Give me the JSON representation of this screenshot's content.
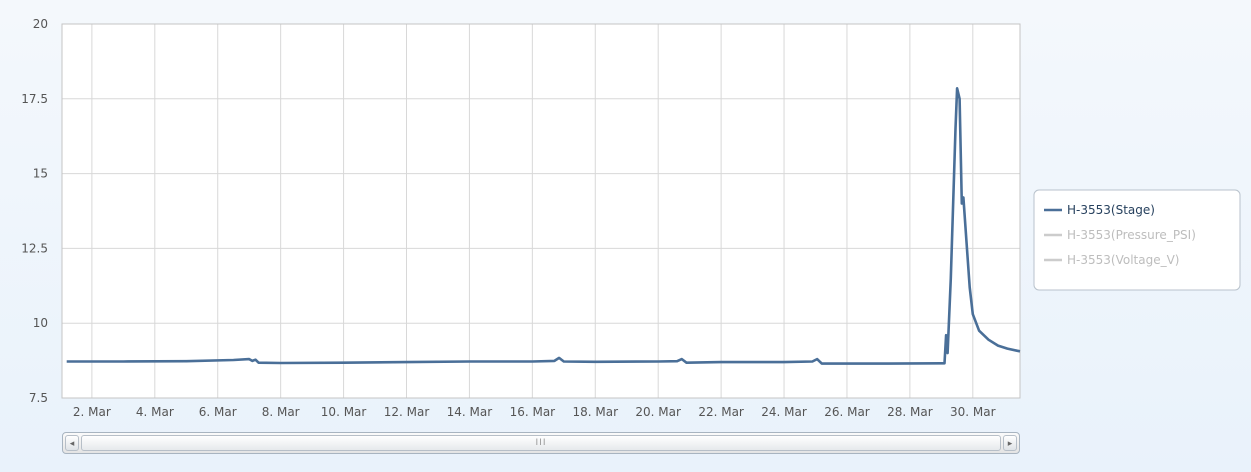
{
  "chart_data": {
    "type": "line",
    "y_ticks": [
      "20",
      "17.5",
      "15",
      "12.5",
      "10",
      "7.5"
    ],
    "y_tick_values": [
      20,
      17.5,
      15,
      12.5,
      10,
      7.5
    ],
    "ylim": [
      7.5,
      20
    ],
    "x_ticks": [
      "2. Mar",
      "4. Mar",
      "6. Mar",
      "8. Mar",
      "10. Mar",
      "12. Mar",
      "14. Mar",
      "16. Mar",
      "18. Mar",
      "20. Mar",
      "22. Mar",
      "24. Mar",
      "26. Mar",
      "28. Mar",
      "30. Mar"
    ],
    "x_tick_days": [
      2,
      4,
      6,
      8,
      10,
      12,
      14,
      16,
      18,
      20,
      22,
      24,
      26,
      28,
      30
    ],
    "xlim_days": [
      1.05,
      31.5
    ],
    "grid": true,
    "legend_position": "right",
    "series": [
      {
        "name": "H-3553(Stage)",
        "color": "#4a6f98",
        "active": true,
        "points": [
          [
            1.2,
            8.72
          ],
          [
            3.0,
            8.72
          ],
          [
            5.0,
            8.73
          ],
          [
            6.5,
            8.77
          ],
          [
            7.0,
            8.8
          ],
          [
            7.1,
            8.74
          ],
          [
            7.2,
            8.78
          ],
          [
            7.3,
            8.68
          ],
          [
            8.0,
            8.67
          ],
          [
            10.0,
            8.68
          ],
          [
            12.0,
            8.7
          ],
          [
            14.0,
            8.72
          ],
          [
            16.0,
            8.72
          ],
          [
            16.7,
            8.74
          ],
          [
            16.85,
            8.84
          ],
          [
            17.0,
            8.72
          ],
          [
            18.0,
            8.71
          ],
          [
            20.0,
            8.72
          ],
          [
            20.6,
            8.73
          ],
          [
            20.75,
            8.8
          ],
          [
            20.9,
            8.68
          ],
          [
            22.0,
            8.7
          ],
          [
            24.0,
            8.7
          ],
          [
            24.9,
            8.72
          ],
          [
            25.05,
            8.8
          ],
          [
            25.2,
            8.65
          ],
          [
            27.0,
            8.65
          ],
          [
            29.0,
            8.66
          ],
          [
            29.1,
            8.66
          ],
          [
            29.15,
            9.6
          ],
          [
            29.2,
            9.0
          ],
          [
            29.3,
            11.5
          ],
          [
            29.45,
            16.5
          ],
          [
            29.5,
            17.85
          ],
          [
            29.58,
            17.5
          ],
          [
            29.65,
            14.0
          ],
          [
            29.7,
            14.2
          ],
          [
            29.78,
            13.0
          ],
          [
            29.9,
            11.2
          ],
          [
            30.0,
            10.3
          ],
          [
            30.2,
            9.75
          ],
          [
            30.5,
            9.45
          ],
          [
            30.8,
            9.25
          ],
          [
            31.1,
            9.15
          ],
          [
            31.4,
            9.08
          ],
          [
            31.5,
            9.06
          ]
        ]
      },
      {
        "name": "H-3553(Pressure_PSI)",
        "color": "#c8c8c8",
        "active": false
      },
      {
        "name": "H-3553(Voltage_V)",
        "color": "#c8c8c8",
        "active": false
      }
    ]
  },
  "legend": {
    "items": [
      {
        "label": "H-3553(Stage)",
        "color": "#4a6f98",
        "text_color": "#27415e"
      },
      {
        "label": "H-3553(Pressure_PSI)",
        "color": "#cccccc",
        "text_color": "#bdbdbd"
      },
      {
        "label": "H-3553(Voltage_V)",
        "color": "#cccccc",
        "text_color": "#bdbdbd"
      }
    ]
  },
  "scrollbar": {
    "left_arrow": "◂",
    "right_arrow": "▸",
    "grip": "III"
  }
}
